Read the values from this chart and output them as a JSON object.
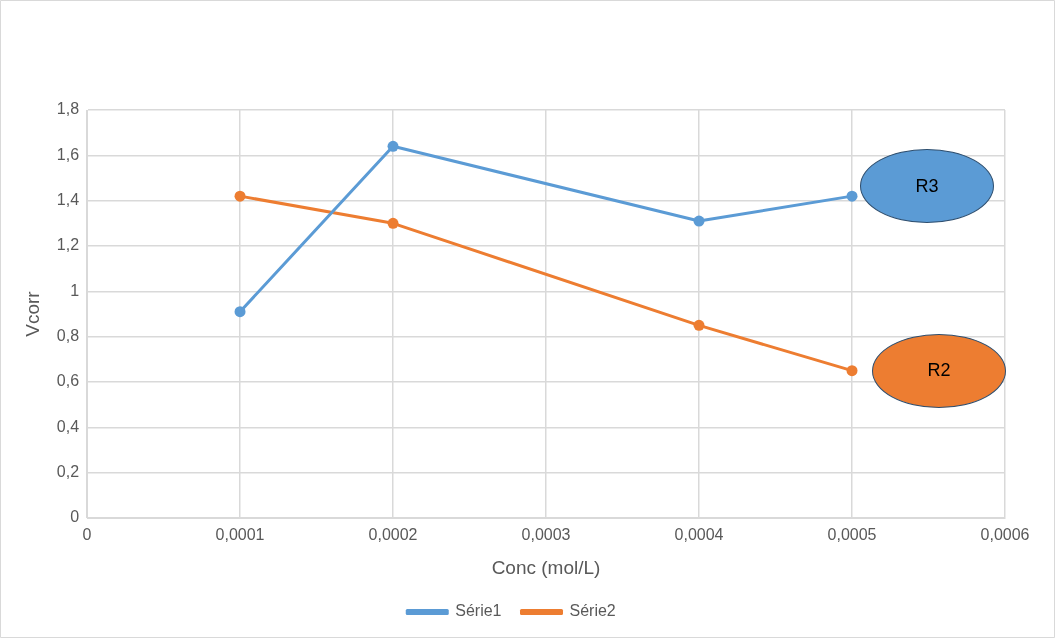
{
  "chart_data": {
    "type": "line",
    "xlabel": "Conc (mol/L)",
    "ylabel": "Vcorr",
    "x": [
      0.0001,
      0.0002,
      0.0004,
      0.0005
    ],
    "series": [
      {
        "name": "Série1",
        "color": "#5b9bd5",
        "values": [
          0.91,
          1.64,
          1.31,
          1.42
        ]
      },
      {
        "name": "Série2",
        "color": "#ed7d31",
        "values": [
          1.42,
          1.3,
          0.85,
          0.65
        ]
      }
    ],
    "xlim": [
      0,
      0.0006
    ],
    "xticks": [
      {
        "value": 0,
        "label": "0"
      },
      {
        "value": 0.0001,
        "label": "0,0001"
      },
      {
        "value": 0.0002,
        "label": "0,0002"
      },
      {
        "value": 0.0003,
        "label": "0,0003"
      },
      {
        "value": 0.0004,
        "label": "0,0004"
      },
      {
        "value": 0.0005,
        "label": "0,0005"
      },
      {
        "value": 0.0006,
        "label": "0,0006"
      }
    ],
    "ylim": [
      0,
      1.8
    ],
    "yticks": [
      {
        "value": 0,
        "label": "0"
      },
      {
        "value": 0.2,
        "label": "0,2"
      },
      {
        "value": 0.4,
        "label": "0,4"
      },
      {
        "value": 0.6,
        "label": "0,6"
      },
      {
        "value": 0.8,
        "label": "0,8"
      },
      {
        "value": 1,
        "label": "1"
      },
      {
        "value": 1.2,
        "label": "1,2"
      },
      {
        "value": 1.4,
        "label": "1,4"
      },
      {
        "value": 1.6,
        "label": "1,6"
      },
      {
        "value": 1.8,
        "label": "1,8"
      }
    ],
    "annotations": [
      "R3",
      "R2"
    ],
    "grid": true,
    "legend": "bottom",
    "marker": "circle",
    "line_style": "solid"
  }
}
